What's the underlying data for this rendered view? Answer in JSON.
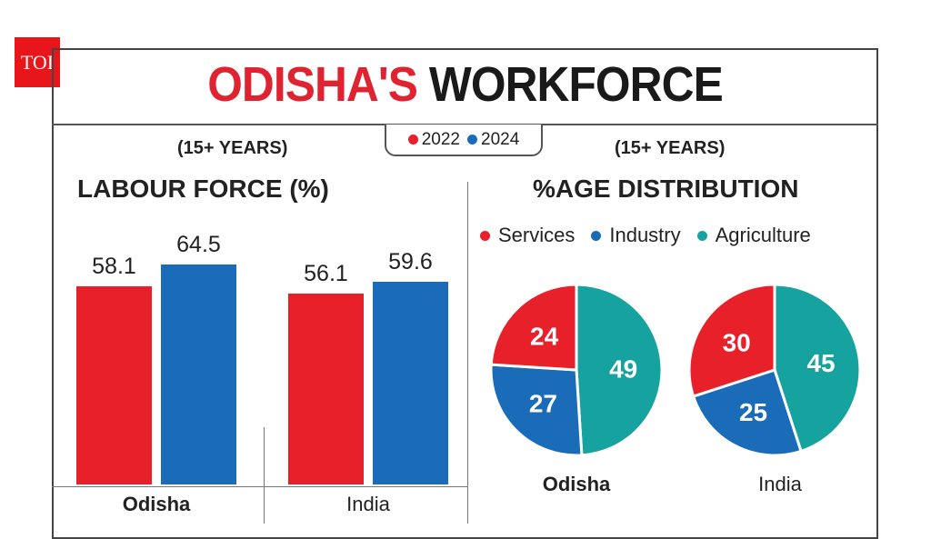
{
  "logo": "TOI",
  "title": {
    "part1": "ODISHA'S",
    "part2": "WORKFORCE"
  },
  "legend": [
    {
      "label": "2022",
      "color": "#e8202a"
    },
    {
      "label": "2024",
      "color": "#1a6bb8"
    }
  ],
  "chart_data": [
    {
      "type": "bar",
      "subtitle": "(15+ YEARS)",
      "title": "LABOUR FORCE (%)",
      "categories": [
        "Odisha",
        "India"
      ],
      "series": [
        {
          "name": "2022",
          "color": "#e8202a",
          "values": [
            58.1,
            56.1
          ]
        },
        {
          "name": "2024",
          "color": "#1a6bb8",
          "values": [
            64.5,
            59.6
          ]
        }
      ],
      "ylim": [
        0,
        70
      ],
      "grid": false
    },
    {
      "type": "pie",
      "subtitle": "(15+ YEARS)",
      "title": "%AGE DISTRIBUTION",
      "legend": [
        {
          "label": "Services",
          "color": "#e8202a"
        },
        {
          "label": "Industry",
          "color": "#1a6bb8"
        },
        {
          "label": "Agriculture",
          "color": "#16a3a0"
        }
      ],
      "pies": [
        {
          "label": "Odisha",
          "values": {
            "Services": 24,
            "Industry": 27,
            "Agriculture": 49
          }
        },
        {
          "label": "India",
          "values": {
            "Services": 30,
            "Industry": 25,
            "Agriculture": 45
          }
        }
      ]
    }
  ]
}
